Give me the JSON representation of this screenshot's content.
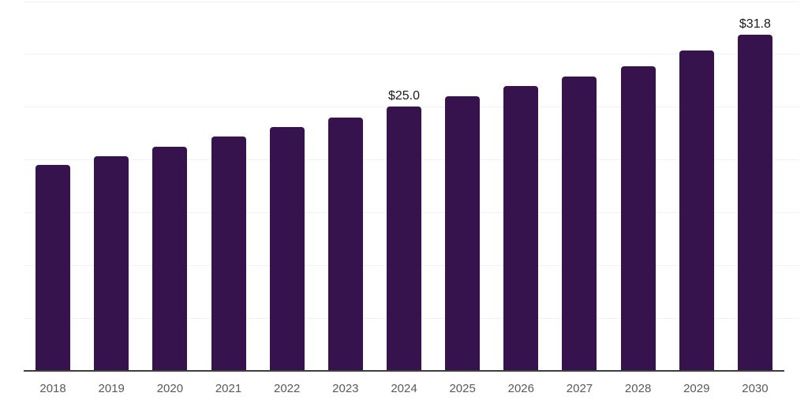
{
  "chart_data": {
    "type": "bar",
    "title": "",
    "xlabel": "",
    "ylabel": "",
    "categories": [
      "2018",
      "2019",
      "2020",
      "2021",
      "2022",
      "2023",
      "2024",
      "2025",
      "2026",
      "2027",
      "2028",
      "2029",
      "2030"
    ],
    "values": [
      19.5,
      20.3,
      21.2,
      22.2,
      23.1,
      24.0,
      25.0,
      26.0,
      27.0,
      27.9,
      28.8,
      30.3,
      31.8
    ],
    "data_labels": [
      {
        "category": "2024",
        "text": "$25.0"
      },
      {
        "category": "2030",
        "text": "$31.8"
      }
    ],
    "ylim": [
      0,
      35
    ],
    "grid_step": 5,
    "grid": true,
    "y_tick_labels_visible": false,
    "legend_position": "none",
    "colors": {
      "bar": "#36134D",
      "gridline": "#F2F2F2",
      "axis_line": "#3D3D3D",
      "tick_label": "#58595B",
      "data_label": "#1A1A1A",
      "background": "#FFFFFF"
    }
  }
}
